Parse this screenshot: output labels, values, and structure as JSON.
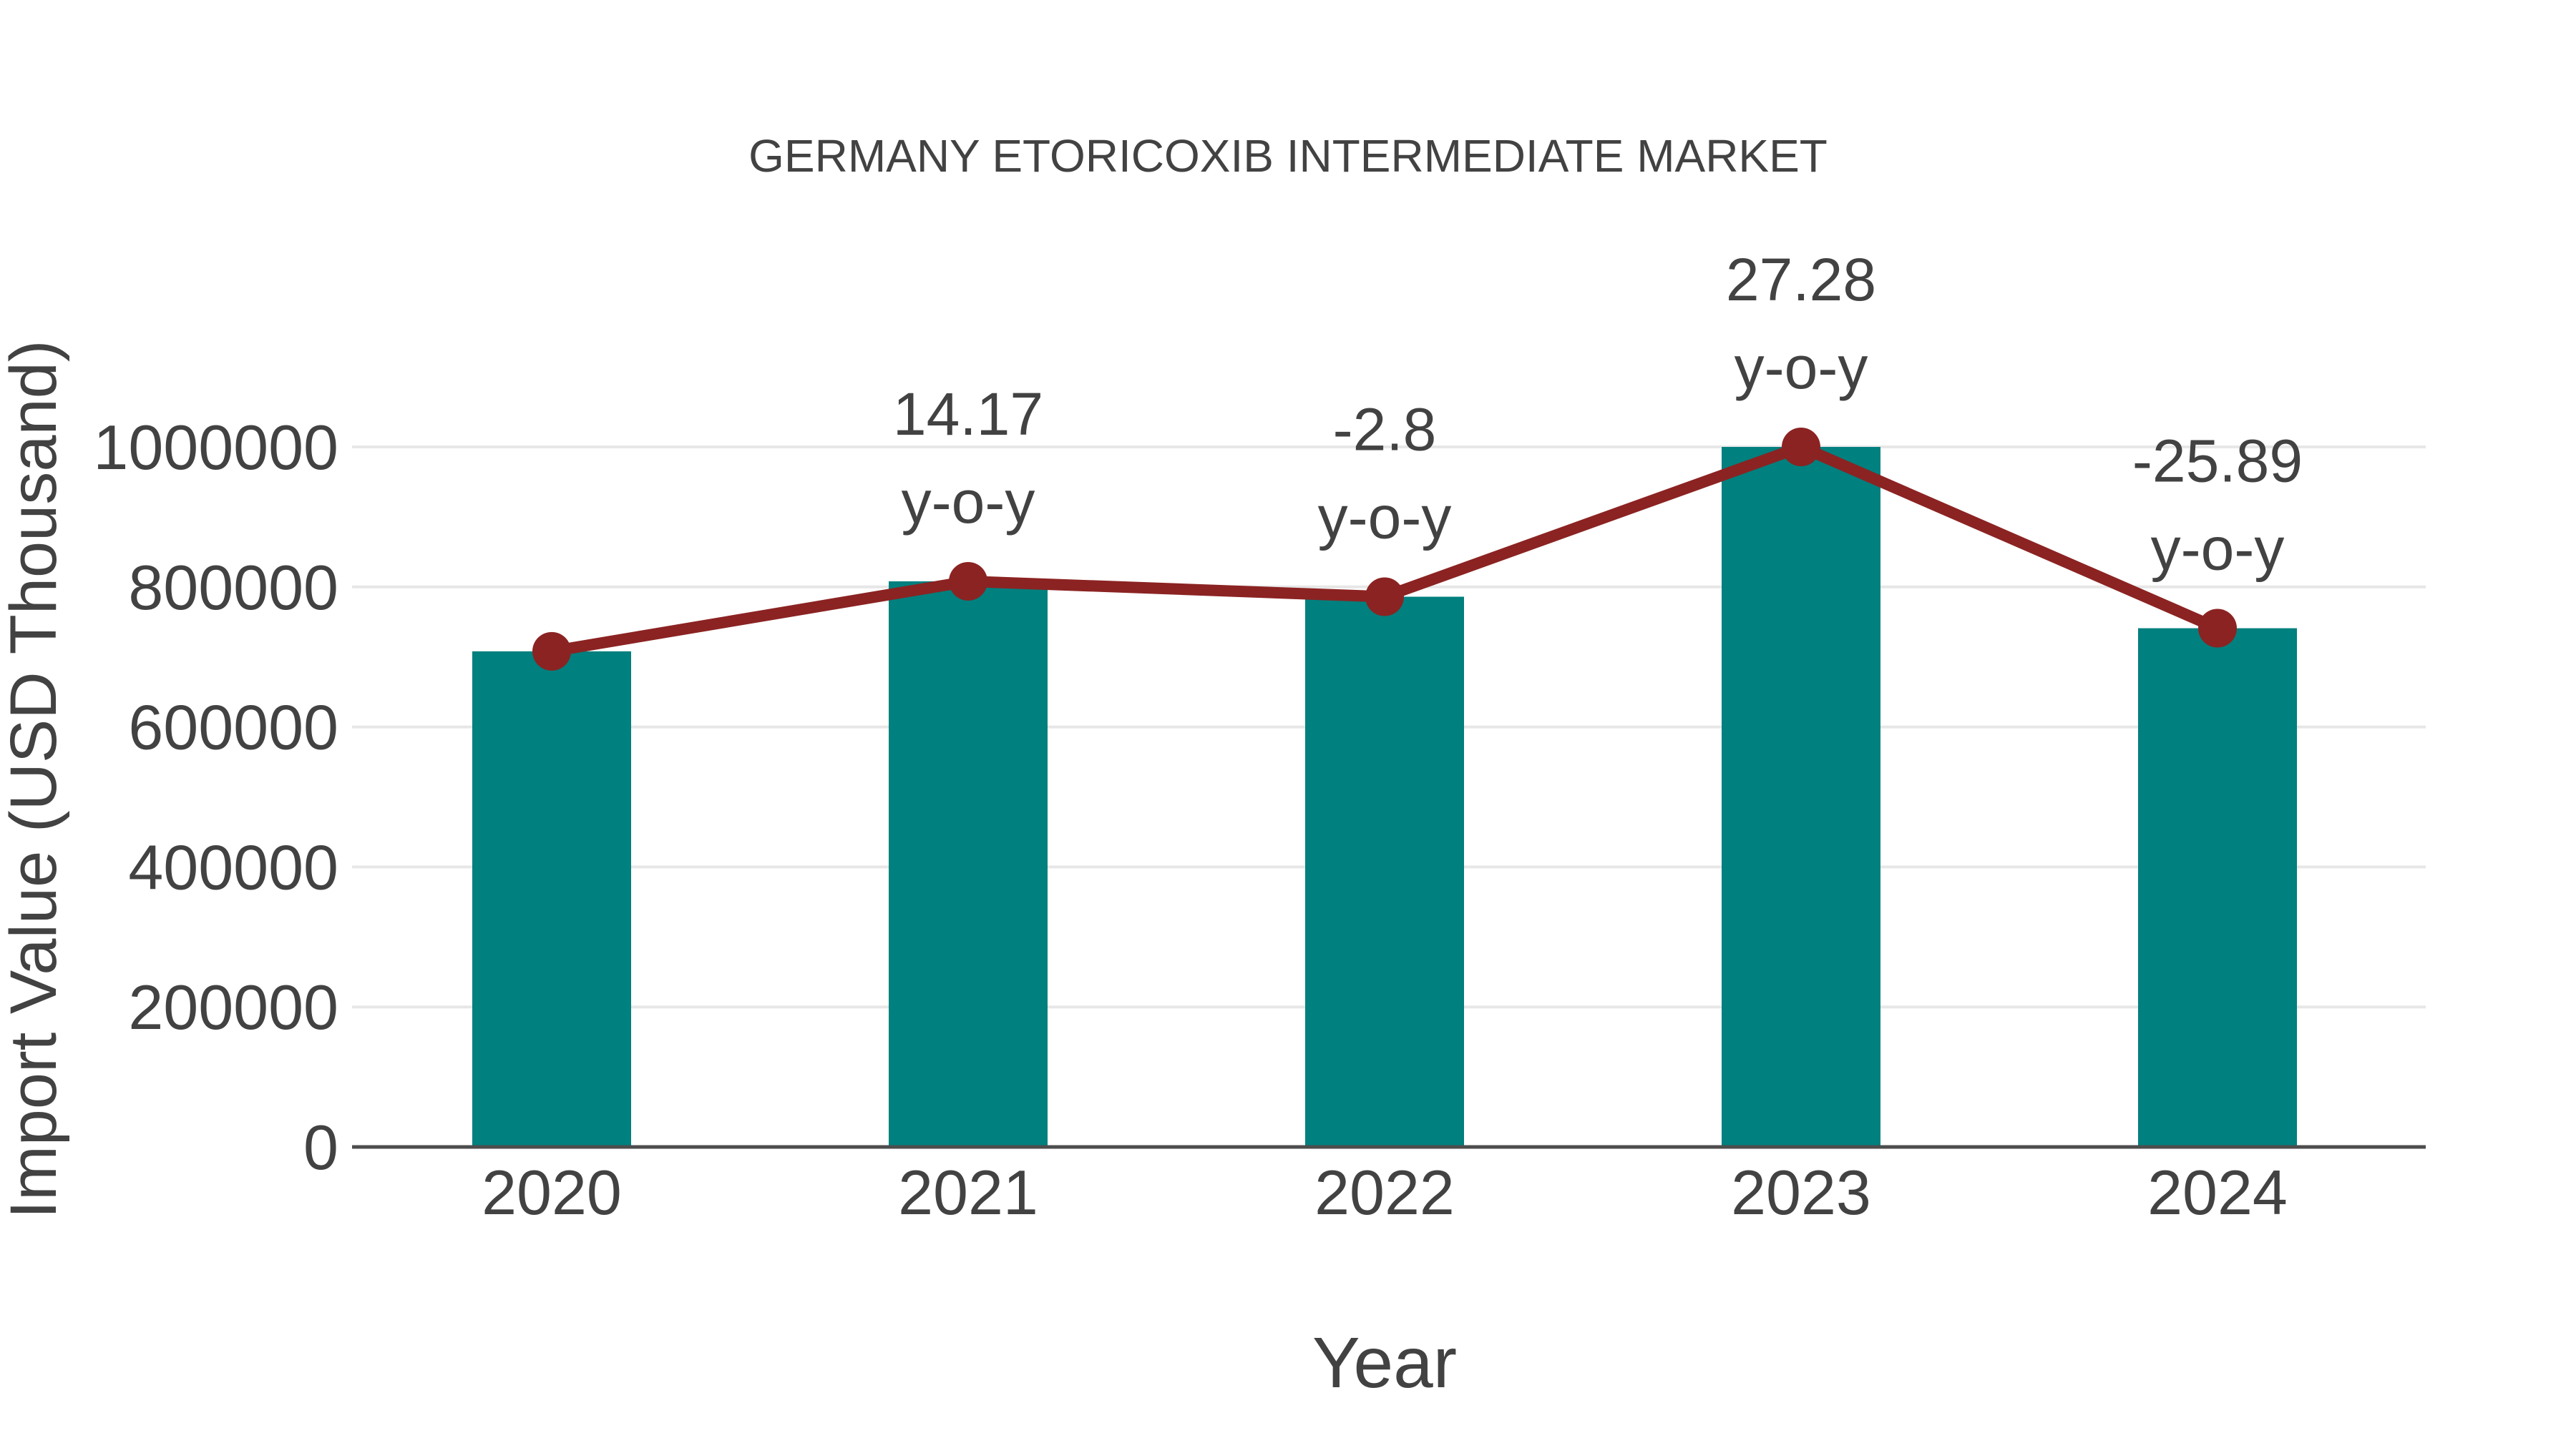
{
  "page": {
    "background": "#ffffff"
  },
  "chart_data": {
    "type": "bar",
    "title": "GERMANY ETORICOXIB INTERMEDIATE MARKET",
    "xlabel": "Year",
    "ylabel": "Import Value (USD Thousand)",
    "categories": [
      "2020",
      "2021",
      "2022",
      "2023",
      "2024"
    ],
    "series": [
      {
        "name": "Import Value",
        "type": "bar",
        "color": "#00807e",
        "values": [
          708000,
          808000,
          786000,
          1000000,
          741000
        ]
      },
      {
        "name": "Year-over-year trend line",
        "type": "line",
        "color": "#8b2322",
        "values": [
          708000,
          808000,
          786000,
          1000000,
          741000
        ]
      }
    ],
    "annotations": [
      {
        "category": "2021",
        "lines": [
          "14.17",
          "y-o-y"
        ]
      },
      {
        "category": "2022",
        "lines": [
          "-2.8",
          "y-o-y"
        ]
      },
      {
        "category": "2023",
        "lines": [
          "27.28",
          "y-o-y"
        ]
      },
      {
        "category": "2024",
        "lines": [
          "-25.89",
          "y-o-y"
        ]
      }
    ],
    "yticks": [
      0,
      200000,
      400000,
      600000,
      800000,
      1000000
    ],
    "ylim": [
      0,
      1150000
    ],
    "grid": true,
    "legend": "none",
    "colors": {
      "grid": "#e7e7e7",
      "axis": "#4d4d4d",
      "text": "#424242"
    }
  }
}
